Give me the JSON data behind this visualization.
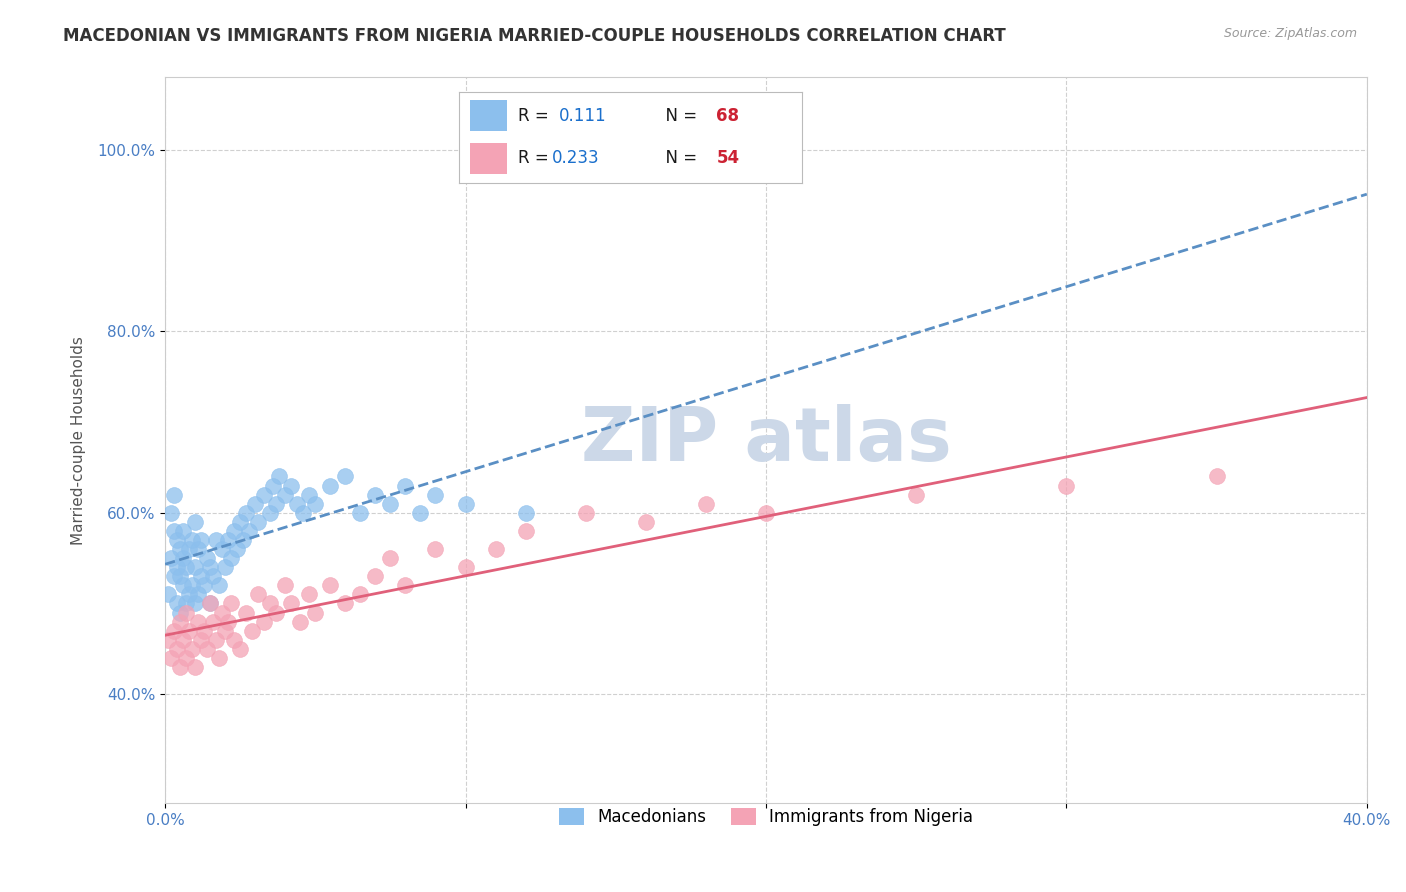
{
  "title": "MACEDONIAN VS IMMIGRANTS FROM NIGERIA MARRIED-COUPLE HOUSEHOLDS CORRELATION CHART",
  "source": "Source: ZipAtlas.com",
  "ylabel": "Married-couple Households",
  "xlim": [
    0.0,
    0.4
  ],
  "ylim": [
    0.28,
    1.08
  ],
  "xtick_vals": [
    0.0,
    0.1,
    0.2,
    0.3,
    0.4
  ],
  "xtick_labels": [
    "0.0%",
    "",
    "",
    "",
    "40.0%"
  ],
  "ytick_vals": [
    0.4,
    0.6,
    0.8,
    1.0
  ],
  "ytick_labels": [
    "40.0%",
    "60.0%",
    "80.0%",
    "100.0%"
  ],
  "mac_color": "#8cbfed",
  "mac_trend_color": "#5a8fc4",
  "nig_color": "#f4a3b5",
  "nig_trend_color": "#e0607a",
  "mac_R": "0.111",
  "mac_N": "68",
  "nig_R": "0.233",
  "nig_N": "54",
  "R_text_color": "#1a1a1a",
  "N_val_color": "#cc2233",
  "R_val_color": "#1a6fcc",
  "watermark_color": "#ccd8e8",
  "grid_color": "#d0d0d0",
  "background_color": "#ffffff",
  "tick_color": "#4a7ec4",
  "title_fontsize": 12,
  "axis_label_fontsize": 11,
  "tick_fontsize": 11,
  "mac_x": [
    0.001,
    0.002,
    0.002,
    0.003,
    0.003,
    0.003,
    0.004,
    0.004,
    0.004,
    0.005,
    0.005,
    0.005,
    0.006,
    0.006,
    0.006,
    0.007,
    0.007,
    0.008,
    0.008,
    0.009,
    0.009,
    0.01,
    0.01,
    0.01,
    0.011,
    0.011,
    0.012,
    0.012,
    0.013,
    0.014,
    0.015,
    0.015,
    0.016,
    0.017,
    0.018,
    0.019,
    0.02,
    0.021,
    0.022,
    0.023,
    0.024,
    0.025,
    0.026,
    0.027,
    0.028,
    0.03,
    0.031,
    0.033,
    0.035,
    0.036,
    0.037,
    0.038,
    0.04,
    0.042,
    0.044,
    0.046,
    0.048,
    0.05,
    0.055,
    0.06,
    0.065,
    0.07,
    0.075,
    0.08,
    0.085,
    0.09,
    0.1,
    0.12
  ],
  "mac_y": [
    0.51,
    0.55,
    0.6,
    0.53,
    0.58,
    0.62,
    0.5,
    0.54,
    0.57,
    0.49,
    0.53,
    0.56,
    0.52,
    0.55,
    0.58,
    0.5,
    0.54,
    0.51,
    0.56,
    0.52,
    0.57,
    0.5,
    0.54,
    0.59,
    0.51,
    0.56,
    0.53,
    0.57,
    0.52,
    0.55,
    0.5,
    0.54,
    0.53,
    0.57,
    0.52,
    0.56,
    0.54,
    0.57,
    0.55,
    0.58,
    0.56,
    0.59,
    0.57,
    0.6,
    0.58,
    0.61,
    0.59,
    0.62,
    0.6,
    0.63,
    0.61,
    0.64,
    0.62,
    0.63,
    0.61,
    0.6,
    0.62,
    0.61,
    0.63,
    0.64,
    0.6,
    0.62,
    0.61,
    0.63,
    0.6,
    0.62,
    0.61,
    0.6
  ],
  "nig_x": [
    0.001,
    0.002,
    0.003,
    0.004,
    0.005,
    0.005,
    0.006,
    0.007,
    0.007,
    0.008,
    0.009,
    0.01,
    0.011,
    0.012,
    0.013,
    0.014,
    0.015,
    0.016,
    0.017,
    0.018,
    0.019,
    0.02,
    0.021,
    0.022,
    0.023,
    0.025,
    0.027,
    0.029,
    0.031,
    0.033,
    0.035,
    0.037,
    0.04,
    0.042,
    0.045,
    0.048,
    0.05,
    0.055,
    0.06,
    0.065,
    0.07,
    0.075,
    0.08,
    0.09,
    0.1,
    0.11,
    0.12,
    0.14,
    0.16,
    0.18,
    0.2,
    0.25,
    0.3,
    0.35
  ],
  "nig_y": [
    0.46,
    0.44,
    0.47,
    0.45,
    0.43,
    0.48,
    0.46,
    0.44,
    0.49,
    0.47,
    0.45,
    0.43,
    0.48,
    0.46,
    0.47,
    0.45,
    0.5,
    0.48,
    0.46,
    0.44,
    0.49,
    0.47,
    0.48,
    0.5,
    0.46,
    0.45,
    0.49,
    0.47,
    0.51,
    0.48,
    0.5,
    0.49,
    0.52,
    0.5,
    0.48,
    0.51,
    0.49,
    0.52,
    0.5,
    0.51,
    0.53,
    0.55,
    0.52,
    0.56,
    0.54,
    0.56,
    0.58,
    0.6,
    0.59,
    0.61,
    0.6,
    0.62,
    0.63,
    0.64
  ]
}
